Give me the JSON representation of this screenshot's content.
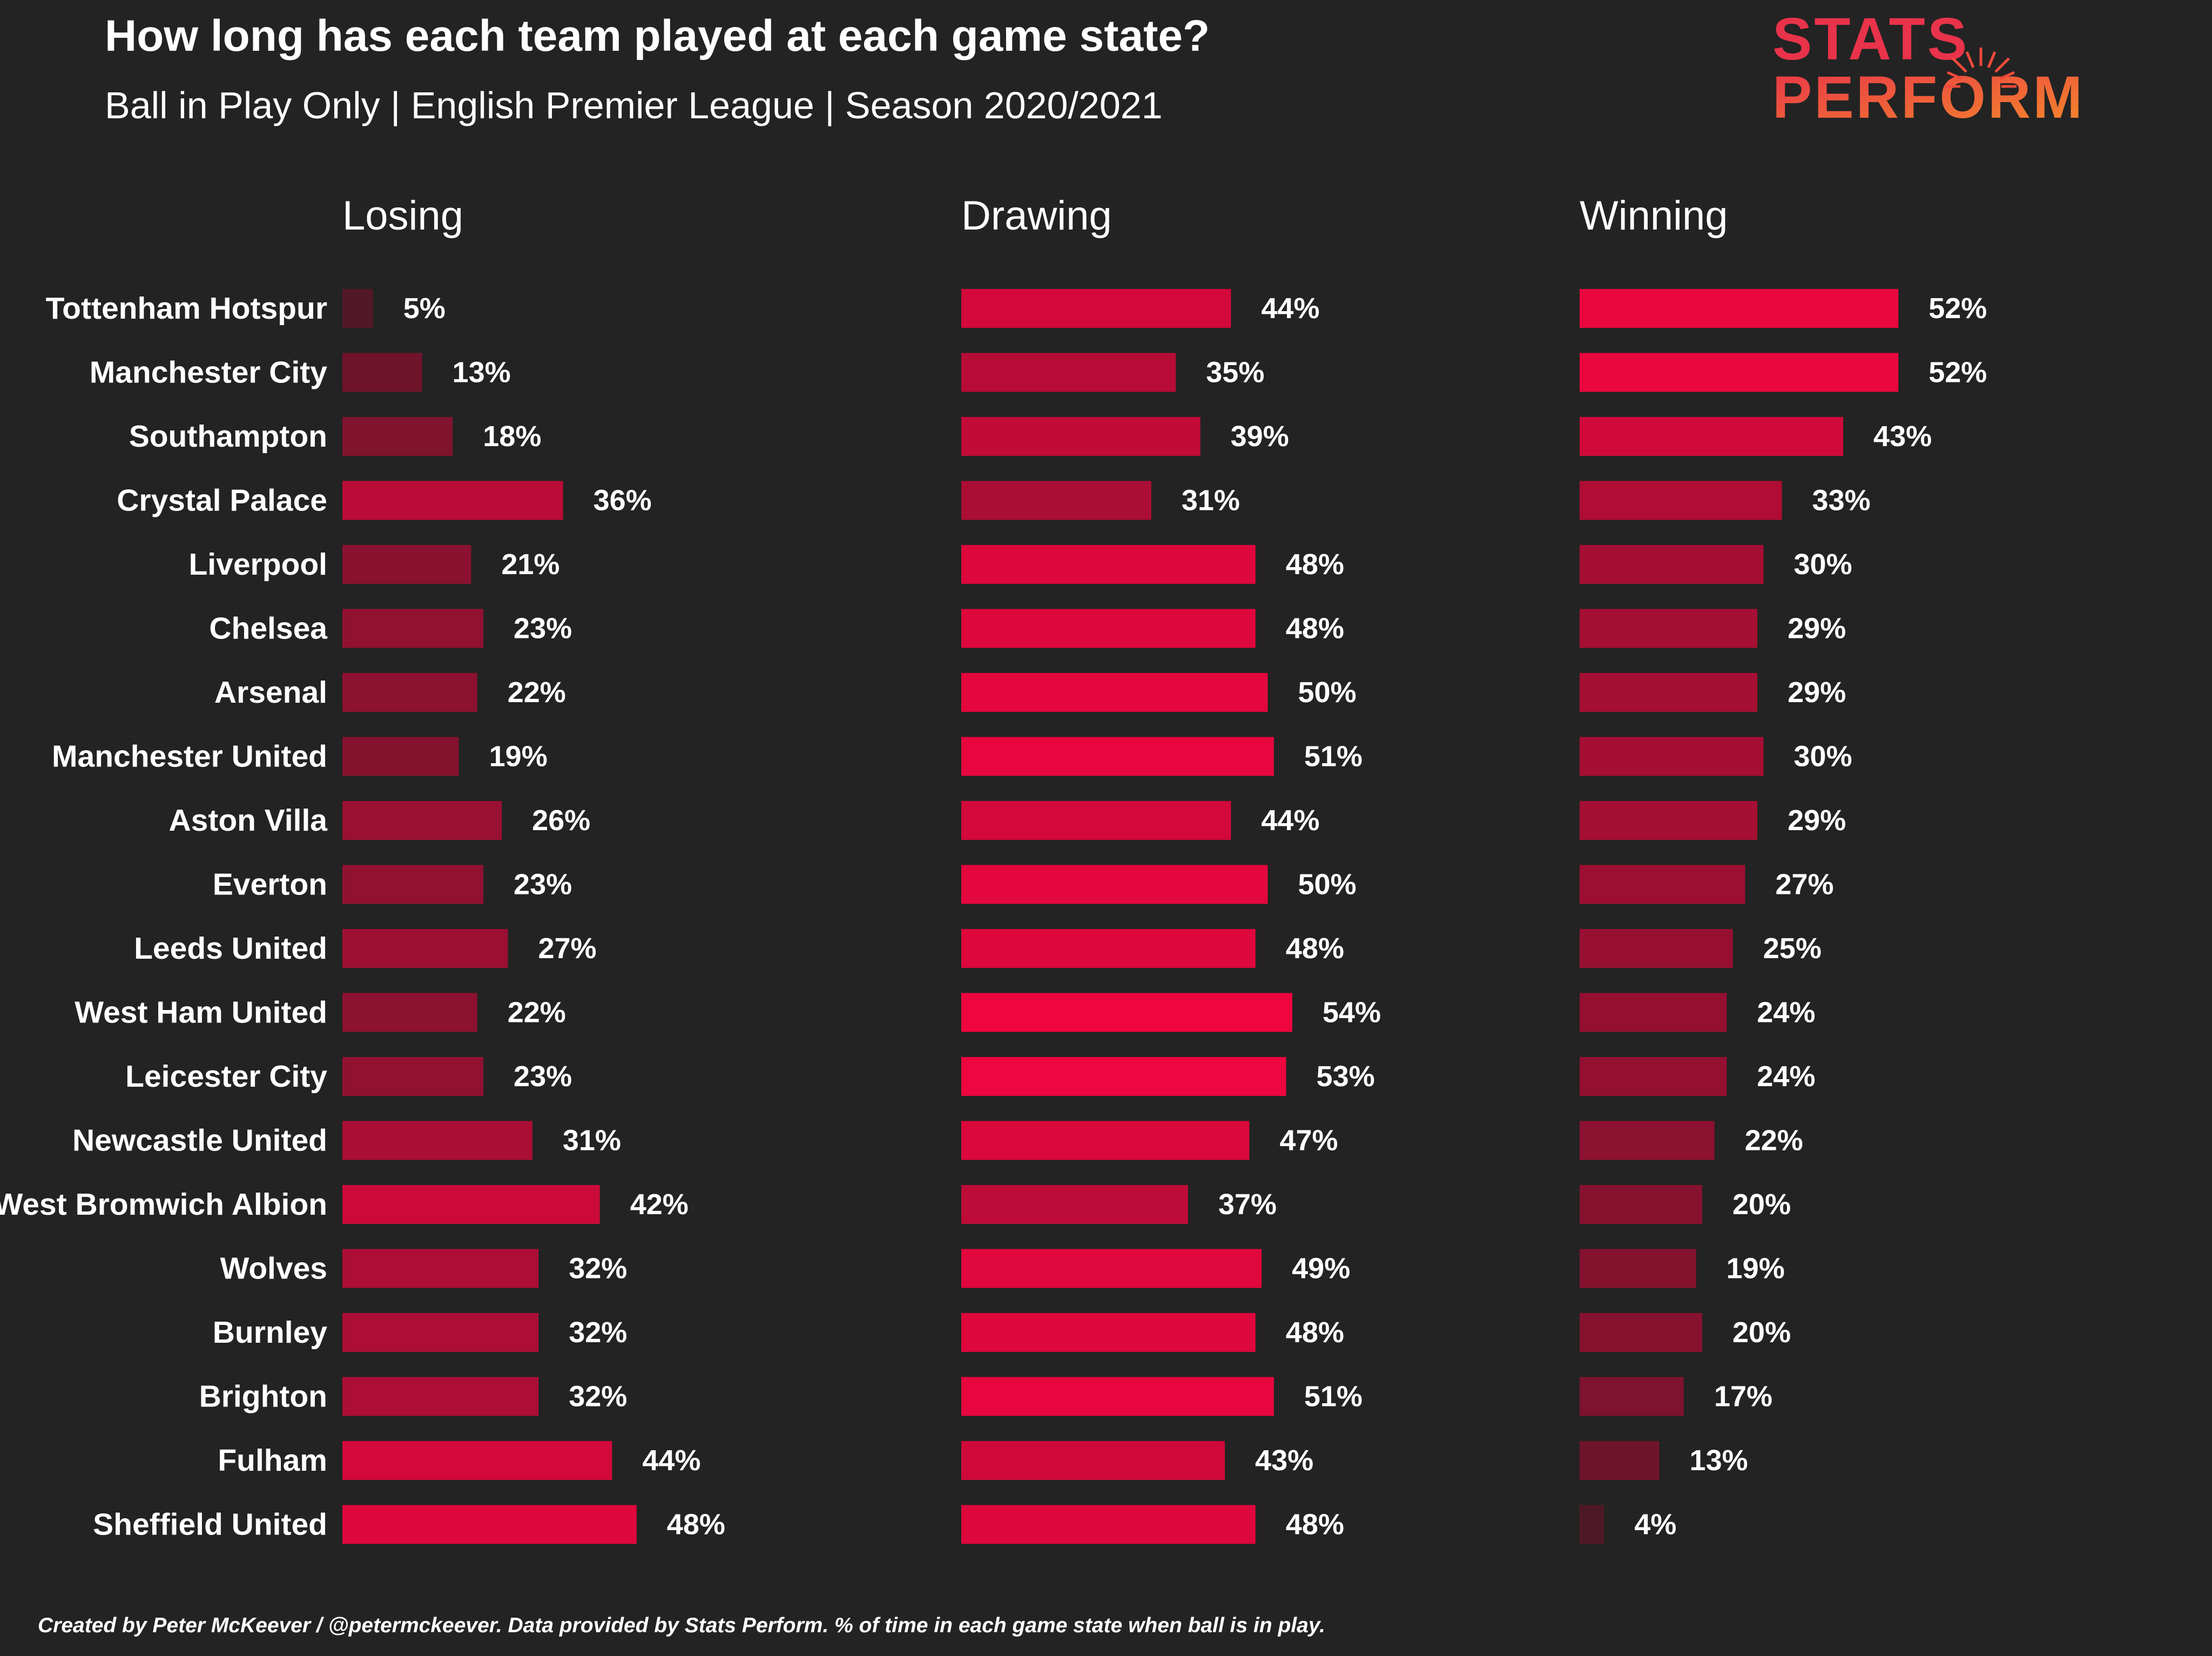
{
  "header": {
    "title": "How long has each team played at each game state?",
    "subtitle": "Ball in Play Only | English Premier League | Season 2020/2021"
  },
  "logo": {
    "line1": "STATS",
    "line2": "PERFORM",
    "color_top": "#e8334a",
    "color_bottom": "#f26b3a"
  },
  "footer": {
    "note": "Created by Peter McKeever / @petermckeever. Data provided by Stats Perform. % of time in each game state when ball is in play."
  },
  "colors": {
    "background": "#232323",
    "bar_high": "#f0063f",
    "bar_low": "#3e1a24",
    "text": "#ffffff"
  },
  "chart_data": {
    "type": "bar",
    "orientation": "horizontal",
    "value_suffix": "%",
    "grid": false,
    "legend": "none",
    "xlim": [
      0,
      60
    ],
    "categories": [
      "Tottenham Hotspur",
      "Manchester City",
      "Southampton",
      "Crystal Palace",
      "Liverpool",
      "Chelsea",
      "Arsenal",
      "Manchester United",
      "Aston Villa",
      "Everton",
      "Leeds United",
      "West Ham United",
      "Leicester City",
      "Newcastle United",
      "West Bromwich Albion",
      "Wolves",
      "Burnley",
      "Brighton",
      "Fulham",
      "Sheffield United"
    ],
    "series": [
      {
        "name": "Losing",
        "values": [
          5,
          13,
          18,
          36,
          21,
          23,
          22,
          19,
          26,
          23,
          27,
          22,
          23,
          31,
          42,
          32,
          32,
          32,
          44,
          48
        ]
      },
      {
        "name": "Drawing",
        "values": [
          44,
          35,
          39,
          31,
          48,
          48,
          50,
          51,
          44,
          50,
          48,
          54,
          53,
          47,
          37,
          49,
          48,
          51,
          43,
          48
        ]
      },
      {
        "name": "Winning",
        "values": [
          52,
          52,
          43,
          33,
          30,
          29,
          29,
          30,
          29,
          27,
          25,
          24,
          24,
          22,
          20,
          19,
          20,
          17,
          13,
          4
        ]
      }
    ]
  }
}
